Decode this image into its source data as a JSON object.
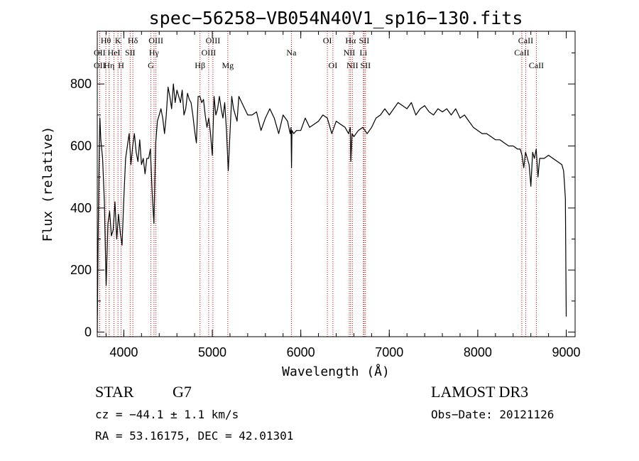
{
  "chart_data": {
    "type": "line",
    "title": "spec−56258−VB054N40V1_sp16−130.fits",
    "xlabel": "Wavelength (Å)",
    "ylabel": "Flux (relative)",
    "xlim": [
      3700,
      9100
    ],
    "ylim": [
      -15,
      970
    ],
    "xticks": [
      4000,
      5000,
      6000,
      7000,
      8000,
      9000
    ],
    "yticks": [
      0,
      200,
      400,
      600,
      800
    ],
    "series": [
      {
        "name": "flux",
        "color": "#000000",
        "x": [
          3700,
          3710,
          3720,
          3730,
          3740,
          3760,
          3780,
          3800,
          3820,
          3840,
          3860,
          3880,
          3900,
          3920,
          3940,
          3960,
          3980,
          4000,
          4020,
          4040,
          4060,
          4080,
          4100,
          4120,
          4140,
          4160,
          4180,
          4200,
          4220,
          4240,
          4260,
          4280,
          4300,
          4320,
          4340,
          4360,
          4380,
          4400,
          4420,
          4440,
          4460,
          4480,
          4500,
          4520,
          4540,
          4560,
          4580,
          4600,
          4620,
          4640,
          4660,
          4680,
          4700,
          4720,
          4740,
          4760,
          4780,
          4800,
          4820,
          4840,
          4860,
          4880,
          4900,
          4920,
          4940,
          4960,
          4980,
          5000,
          5020,
          5040,
          5060,
          5080,
          5100,
          5120,
          5140,
          5160,
          5180,
          5200,
          5220,
          5240,
          5260,
          5280,
          5300,
          5350,
          5400,
          5450,
          5500,
          5550,
          5600,
          5650,
          5700,
          5750,
          5800,
          5850,
          5880,
          5890,
          5895,
          5900,
          5920,
          5950,
          6000,
          6050,
          6100,
          6150,
          6200,
          6250,
          6300,
          6350,
          6400,
          6450,
          6500,
          6540,
          6560,
          6565,
          6580,
          6600,
          6650,
          6700,
          6750,
          6800,
          6850,
          6900,
          6950,
          7000,
          7050,
          7100,
          7150,
          7200,
          7250,
          7300,
          7350,
          7400,
          7450,
          7500,
          7550,
          7600,
          7650,
          7700,
          7750,
          7800,
          7850,
          7900,
          7950,
          8000,
          8050,
          8100,
          8150,
          8200,
          8250,
          8300,
          8350,
          8400,
          8450,
          8480,
          8500,
          8520,
          8540,
          8560,
          8580,
          8600,
          8620,
          8640,
          8660,
          8680,
          8700,
          8750,
          8800,
          8850,
          8900,
          8950,
          8970,
          8980,
          8990,
          9000
        ],
        "y": [
          0,
          300,
          540,
          690,
          620,
          560,
          420,
          150,
          350,
          390,
          310,
          330,
          420,
          300,
          380,
          320,
          280,
          430,
          560,
          600,
          640,
          540,
          600,
          640,
          580,
          550,
          620,
          540,
          560,
          510,
          560,
          560,
          590,
          450,
          350,
          610,
          680,
          700,
          720,
          690,
          640,
          700,
          790,
          760,
          720,
          800,
          740,
          780,
          760,
          740,
          780,
          700,
          720,
          770,
          750,
          740,
          700,
          650,
          610,
          760,
          760,
          740,
          750,
          700,
          660,
          690,
          640,
          570,
          760,
          700,
          720,
          760,
          720,
          690,
          740,
          650,
          520,
          640,
          760,
          720,
          700,
          680,
          760,
          730,
          700,
          700,
          710,
          650,
          690,
          720,
          690,
          640,
          700,
          680,
          640,
          660,
          530,
          650,
          640,
          650,
          650,
          690,
          660,
          670,
          680,
          700,
          690,
          640,
          680,
          670,
          660,
          640,
          660,
          550,
          640,
          630,
          650,
          660,
          640,
          660,
          690,
          700,
          720,
          700,
          720,
          740,
          730,
          720,
          740,
          700,
          720,
          730,
          710,
          700,
          720,
          710,
          720,
          700,
          720,
          690,
          700,
          680,
          660,
          650,
          640,
          640,
          630,
          620,
          620,
          610,
          600,
          600,
          590,
          590,
          570,
          530,
          580,
          560,
          540,
          470,
          580,
          560,
          590,
          500,
          560,
          560,
          570,
          560,
          550,
          540,
          520,
          480,
          430,
          50
        ]
      }
    ],
    "spectral_lines": [
      {
        "label": "OII",
        "x": 3727,
        "row": 2
      },
      {
        "label": "Hθ",
        "x": 3797,
        "row": 0
      },
      {
        "label": "OII",
        "x": 3727,
        "row": 1
      },
      {
        "label": "Hη",
        "x": 3835,
        "row": 2
      },
      {
        "label": "HeI",
        "x": 3889,
        "row": 1
      },
      {
        "label": "K",
        "x": 3934,
        "row": 0
      },
      {
        "label": "H",
        "x": 3969,
        "row": 2
      },
      {
        "label": "SII",
        "x": 4072,
        "row": 1
      },
      {
        "label": "Hδ",
        "x": 4102,
        "row": 0
      },
      {
        "label": "G",
        "x": 4305,
        "row": 2
      },
      {
        "label": "Hγ",
        "x": 4341,
        "row": 1
      },
      {
        "label": "OIII",
        "x": 4363,
        "row": 0
      },
      {
        "label": "Hβ",
        "x": 4861,
        "row": 2
      },
      {
        "label": "OIII",
        "x": 4959,
        "row": 1
      },
      {
        "label": "OIII",
        "x": 5007,
        "row": 0
      },
      {
        "label": "Mg",
        "x": 5175,
        "row": 2
      },
      {
        "label": "Na",
        "x": 5894,
        "row": 1
      },
      {
        "label": "OI",
        "x": 6300,
        "row": 0
      },
      {
        "label": "OI",
        "x": 6363,
        "row": 2
      },
      {
        "label": "NII",
        "x": 6548,
        "row": 1
      },
      {
        "label": "Hα",
        "x": 6563,
        "row": 0
      },
      {
        "label": "NII",
        "x": 6583,
        "row": 2
      },
      {
        "label": "Li",
        "x": 6707,
        "row": 1
      },
      {
        "label": "SII",
        "x": 6716,
        "row": 0
      },
      {
        "label": "SII",
        "x": 6731,
        "row": 2
      },
      {
        "label": "CaII",
        "x": 8498,
        "row": 1
      },
      {
        "label": "CaII",
        "x": 8542,
        "row": 0
      },
      {
        "label": "CaII",
        "x": 8662,
        "row": 2
      }
    ],
    "line_marker_color": "#cc0000"
  },
  "info": {
    "class": "STAR",
    "subclass": "G7",
    "survey": "LAMOST DR3",
    "cz": "cz = −44.1 ± 1.1 km/s",
    "obs_date": "Obs−Date: 20121126",
    "coords": "RA =  53.16175, DEC =  42.01301"
  }
}
